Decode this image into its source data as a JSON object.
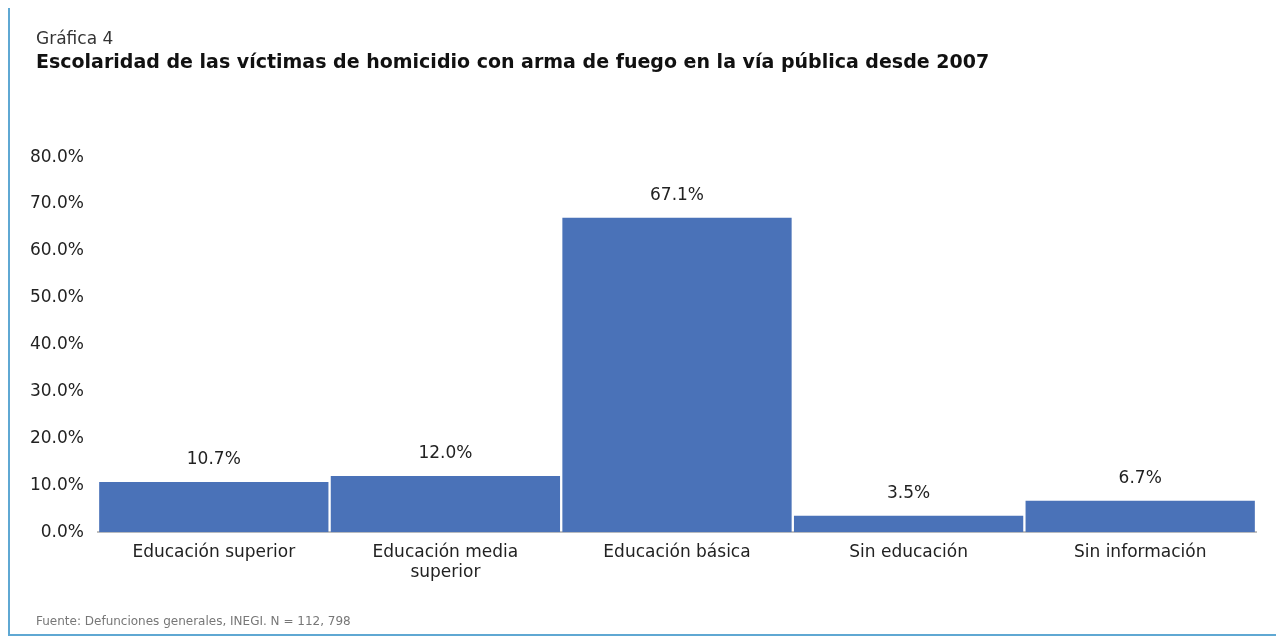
{
  "chart_data": {
    "type": "bar",
    "subtitle": "Gráfica 4",
    "title": "Escolaridad de las víctimas de homicidio con arma de fuego en la vía pública desde 2007",
    "categories": [
      "Educación superior",
      "Educación media superior",
      "Educación básica",
      "Sin educación",
      "Sin información"
    ],
    "values": [
      10.7,
      12.0,
      67.1,
      3.5,
      6.7
    ],
    "value_labels": [
      "10.7%",
      "12.0%",
      "67.1%",
      "3.5%",
      "6.7%"
    ],
    "color": "#4a72b8",
    "ylim": [
      0,
      80
    ],
    "yticks": [
      {
        "value": 0,
        "label": "0.0%"
      },
      {
        "value": 10,
        "label": "10.0%"
      },
      {
        "value": 20,
        "label": "20.0%"
      },
      {
        "value": 30,
        "label": "30.0%"
      },
      {
        "value": 40,
        "label": "40.0%"
      },
      {
        "value": 50,
        "label": "50.0%"
      },
      {
        "value": 60,
        "label": "60.0%"
      },
      {
        "value": 70,
        "label": "70.0%"
      },
      {
        "value": 80,
        "label": "80.0%"
      }
    ],
    "grid": false,
    "legend": false,
    "annotations": [
      "Fuente: Defunciones generales, INEGI. N = 112, 798"
    ]
  }
}
